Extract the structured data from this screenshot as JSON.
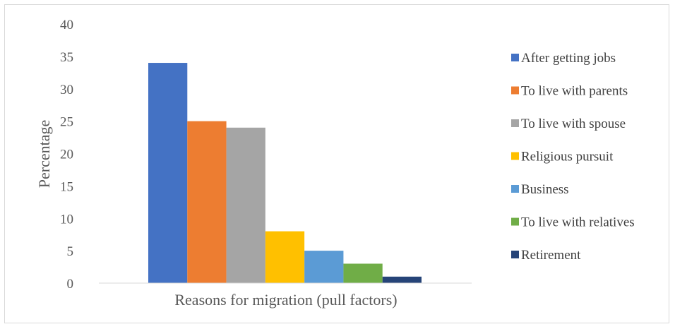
{
  "chart_data": {
    "type": "bar",
    "xlabel": "Reasons for migration (pull factors)",
    "ylabel": "Percentage",
    "ylim": [
      0,
      40
    ],
    "yticks": [
      0,
      5,
      10,
      15,
      20,
      25,
      30,
      35,
      40
    ],
    "grid": false,
    "legend_position": "right",
    "series": [
      {
        "name": "After getting jobs",
        "value": 34,
        "color": "#4472c4"
      },
      {
        "name": "To live with parents",
        "value": 25,
        "color": "#ed7d31"
      },
      {
        "name": "To live with spouse",
        "value": 24,
        "color": "#a5a5a5"
      },
      {
        "name": "Religious pursuit",
        "value": 8,
        "color": "#ffc000"
      },
      {
        "name": "Business",
        "value": 5,
        "color": "#5b9bd5"
      },
      {
        "name": "To live with relatives",
        "value": 3,
        "color": "#70ad47"
      },
      {
        "name": "Retirement",
        "value": 1,
        "color": "#264478"
      }
    ]
  }
}
